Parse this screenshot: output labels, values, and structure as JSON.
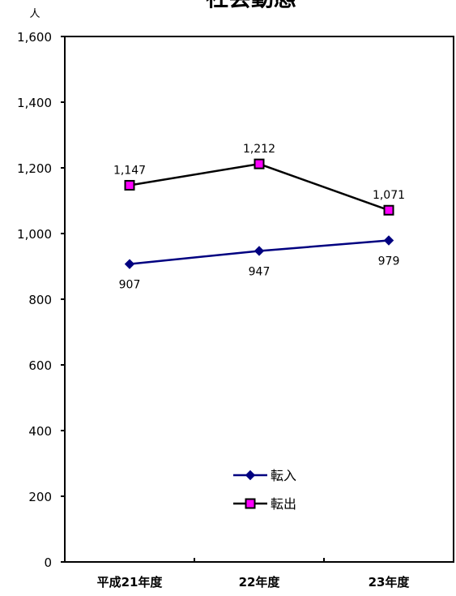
{
  "chart_data": {
    "type": "line",
    "title": "社会動態",
    "y_unit": "人",
    "categories": [
      "平成21年度",
      "22年度",
      "23年度"
    ],
    "ylim": [
      0,
      1600
    ],
    "yticks": [
      0,
      200,
      400,
      600,
      800,
      1000,
      1200,
      1400,
      1600
    ],
    "ytick_labels": [
      "0",
      "200",
      "400",
      "600",
      "800",
      "1,000",
      "1,200",
      "1,400",
      "1,600"
    ],
    "grid": false,
    "legend_position": "bottom-center inside",
    "series": [
      {
        "name": "転入",
        "values": [
          907,
          947,
          979
        ],
        "labels": [
          "907",
          "947",
          "979"
        ],
        "line_color": "#000080",
        "marker": "diamond",
        "marker_fill": "#000080",
        "label_position": "below"
      },
      {
        "name": "転出",
        "values": [
          1147,
          1212,
          1071
        ],
        "labels": [
          "1,147",
          "1,212",
          "1,071"
        ],
        "line_color": "#000000",
        "marker": "square",
        "marker_fill": "#ff00ff",
        "label_position": "above"
      }
    ]
  }
}
